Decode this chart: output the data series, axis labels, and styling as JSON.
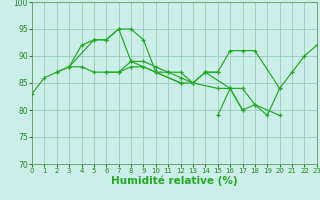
{
  "background_color": "#cceee8",
  "grid_color": "#99ccbb",
  "line_color": "#22aa22",
  "xlabel": "Humidité relative (%)",
  "xlim": [
    0,
    23
  ],
  "ylim": [
    70,
    100
  ],
  "yticks": [
    70,
    75,
    80,
    85,
    90,
    95,
    100
  ],
  "xticks": [
    0,
    1,
    2,
    3,
    4,
    5,
    6,
    7,
    8,
    9,
    10,
    11,
    12,
    13,
    14,
    15,
    16,
    17,
    18,
    19,
    20,
    21,
    22,
    23
  ],
  "series": [
    {
      "x": [
        0,
        1,
        2,
        3,
        4,
        5,
        6,
        7,
        8,
        9,
        10,
        11,
        12,
        13,
        14,
        15
      ],
      "y": [
        83,
        86,
        87,
        88,
        92,
        93,
        93,
        95,
        95,
        93,
        87,
        87,
        87,
        85,
        87,
        87
      ]
    },
    {
      "x": [
        2,
        3,
        5,
        6,
        7,
        8,
        10,
        12
      ],
      "y": [
        87,
        88,
        93,
        93,
        95,
        89,
        87,
        85
      ]
    },
    {
      "x": [
        3,
        4,
        5,
        6,
        7,
        8,
        9,
        10,
        11,
        12,
        13,
        14,
        15,
        16,
        17,
        18,
        20,
        21,
        22,
        23
      ],
      "y": [
        88,
        88,
        87,
        87,
        87,
        89,
        89,
        88,
        87,
        86,
        85,
        87,
        87,
        91,
        91,
        91,
        84,
        87,
        90,
        92
      ]
    },
    {
      "x": [
        6,
        7,
        8,
        9,
        10,
        12,
        13,
        15,
        16,
        17,
        18,
        19,
        20
      ],
      "y": [
        87,
        87,
        88,
        88,
        87,
        85,
        85,
        84,
        84,
        84,
        81,
        79,
        84
      ]
    },
    {
      "x": [
        14,
        16,
        17
      ],
      "y": [
        87,
        84,
        80
      ]
    },
    {
      "x": [
        15,
        16,
        17,
        18,
        20
      ],
      "y": [
        79,
        84,
        80,
        81,
        79
      ]
    }
  ]
}
